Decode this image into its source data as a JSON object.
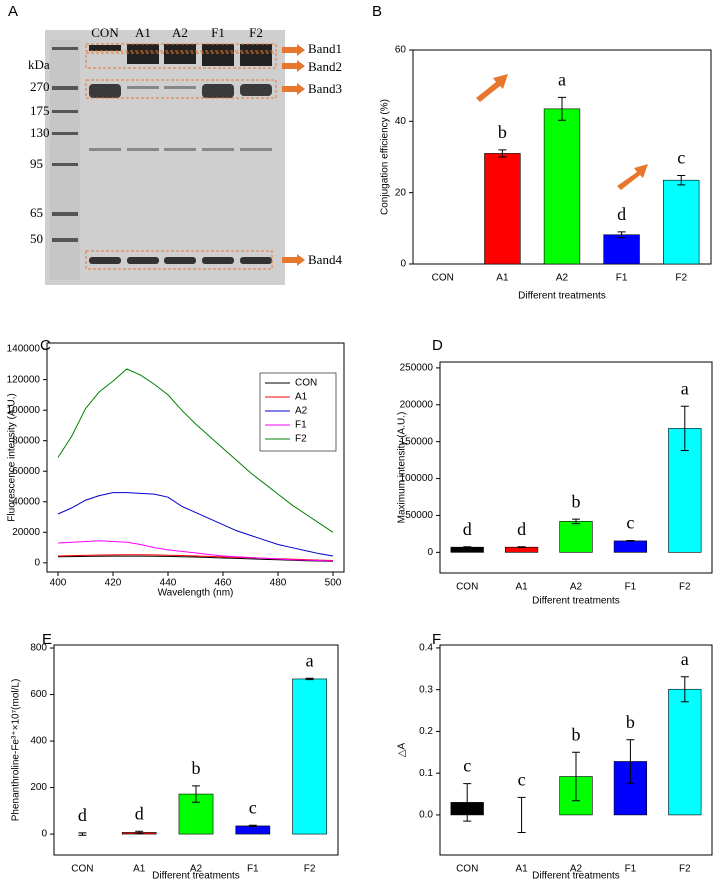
{
  "gel": {
    "panel_label": "A",
    "lanes": [
      "CON",
      "A1",
      "A2",
      "F1",
      "F2"
    ],
    "unit": "kDa",
    "markers": [
      270,
      175,
      130,
      95,
      65,
      50
    ],
    "bands": [
      "Band1",
      "Band2",
      "Band3",
      "Band4"
    ]
  },
  "chart_data": [
    {
      "type": "bar",
      "panel_label": "B",
      "xlabel": "Different treatments",
      "ylabel": "Conjugation efficiency (%)",
      "categories": [
        "CON",
        "A1",
        "A2",
        "F1",
        "F2"
      ],
      "values": [
        0,
        31,
        43.5,
        8.2,
        23.5
      ],
      "errors": [
        0,
        1,
        3.2,
        0.8,
        1.3
      ],
      "letters": [
        null,
        "b",
        "a",
        "d",
        "c"
      ],
      "colors": [
        "#000000",
        "#ff0000",
        "#00ff00",
        "#0000ff",
        "#00ffff"
      ],
      "ylim": [
        0,
        60
      ],
      "yticks": [
        0,
        20,
        40,
        60
      ]
    },
    {
      "type": "line",
      "panel_label": "C",
      "xlabel": "Wavelength (nm)",
      "ylabel": "Fluorescence intensity (A.U.)",
      "x": [
        400,
        405,
        410,
        415,
        420,
        425,
        430,
        435,
        440,
        445,
        450,
        455,
        460,
        465,
        470,
        475,
        480,
        485,
        490,
        495,
        500
      ],
      "series": [
        {
          "name": "CON",
          "color": "#000000",
          "values": [
            4000,
            4100,
            4200,
            4300,
            4400,
            4400,
            4400,
            4300,
            4200,
            4000,
            3800,
            3500,
            3200,
            2900,
            2600,
            2300,
            2000,
            1700,
            1400,
            1200,
            1000
          ]
        },
        {
          "name": "A1",
          "color": "#ff0000",
          "values": [
            4500,
            4700,
            4900,
            5100,
            5200,
            5300,
            5300,
            5200,
            5000,
            4800,
            4500,
            4200,
            3900,
            3600,
            3300,
            3000,
            2700,
            2400,
            2100,
            1800,
            1500
          ]
        },
        {
          "name": "A2",
          "color": "#0000cc",
          "values": [
            32000,
            36000,
            41000,
            44000,
            46000,
            46000,
            45500,
            45000,
            43000,
            37000,
            33000,
            29000,
            25000,
            21000,
            18000,
            15000,
            12000,
            10000,
            8000,
            6000,
            4500
          ]
        },
        {
          "name": "F1",
          "color": "#ff00ff",
          "values": [
            13000,
            13500,
            14000,
            14500,
            14000,
            13500,
            12000,
            10000,
            8500,
            7500,
            6500,
            5500,
            4500,
            4000,
            3500,
            3000,
            2500,
            2000,
            1800,
            1500,
            1200
          ]
        },
        {
          "name": "F2",
          "color": "#008000",
          "values": [
            69000,
            83000,
            101000,
            112000,
            119000,
            127000,
            123000,
            117000,
            110000,
            100000,
            91000,
            83000,
            75000,
            67000,
            59000,
            52000,
            45000,
            38000,
            32000,
            26000,
            20000
          ]
        }
      ],
      "xlim": [
        396,
        504
      ],
      "xticks": [
        400,
        420,
        440,
        460,
        480,
        500
      ],
      "ylim": [
        -6000,
        144000
      ],
      "yticks": [
        0,
        20000,
        40000,
        60000,
        80000,
        100000,
        120000,
        140000
      ],
      "legend": "top-right"
    },
    {
      "type": "bar",
      "panel_label": "D",
      "xlabel": "Different treatments",
      "ylabel": "Maximum intensity (A.U.)",
      "categories": [
        "CON",
        "A1",
        "A2",
        "F1",
        "F2"
      ],
      "values": [
        7000,
        7000,
        42000,
        15500,
        168000
      ],
      "errors": [
        500,
        500,
        3000,
        500,
        30000
      ],
      "letters": [
        "d",
        "d",
        "b",
        "c",
        "a"
      ],
      "colors": [
        "#000000",
        "#ff0000",
        "#00ff00",
        "#0000ff",
        "#00ffff"
      ],
      "ylim": [
        -28000,
        258000
      ],
      "yticks": [
        0,
        50000,
        100000,
        150000,
        200000,
        250000
      ]
    },
    {
      "type": "bar",
      "panel_label": "E",
      "xlabel": "Different treatments",
      "ylabel": "Phenanthroline-Fe³⁺×10⁷(mol/L)",
      "categories": [
        "CON",
        "A1",
        "A2",
        "F1",
        "F2"
      ],
      "values": [
        0,
        7,
        172,
        35,
        667
      ],
      "errors": [
        5,
        5,
        35,
        3,
        3
      ],
      "letters": [
        "d",
        "d",
        "b",
        "c",
        "a"
      ],
      "colors": [
        "#000000",
        "#ff0000",
        "#00ff00",
        "#0000ff",
        "#00ffff"
      ],
      "ylim": [
        -90,
        813
      ],
      "yticks": [
        0,
        200,
        400,
        600,
        800
      ]
    },
    {
      "type": "bar",
      "panel_label": "F",
      "xlabel": "Different treatments",
      "ylabel": "△A",
      "categories": [
        "CON",
        "A1",
        "A2",
        "F1",
        "F2"
      ],
      "values": [
        0.03,
        0.0,
        0.092,
        0.128,
        0.301
      ],
      "errors": [
        0.045,
        0.042,
        0.058,
        0.052,
        0.03
      ],
      "letters": [
        "c",
        "c",
        "b",
        "b",
        "a"
      ],
      "colors": [
        "#000000",
        "#ff0000",
        "#00ff00",
        "#0000ff",
        "#00ffff"
      ],
      "ylim": [
        -0.096,
        0.407
      ],
      "yticks": [
        {
          "value": 0,
          "label": "0.0"
        },
        0.1,
        0.2,
        0.3,
        0.4
      ]
    }
  ]
}
